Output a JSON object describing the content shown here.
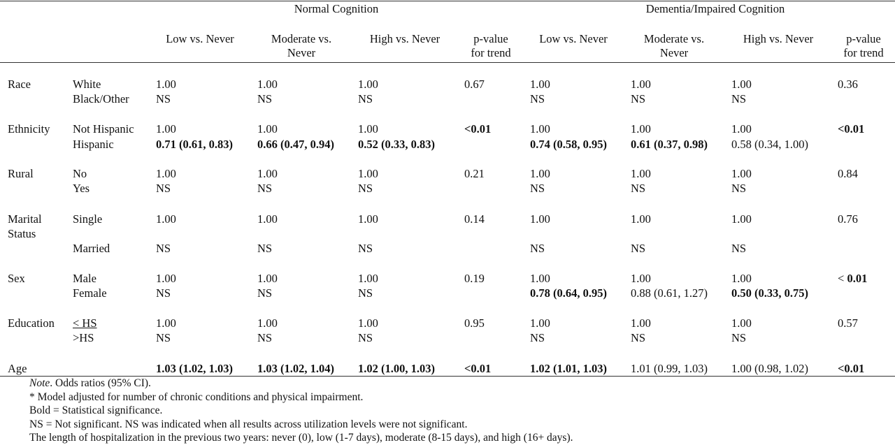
{
  "groups": {
    "normal": "Normal Cognition",
    "dementia": "Dementia/Impaired Cognition"
  },
  "columns": {
    "n_low": "Low vs. Never",
    "n_mod_1": "Moderate vs.",
    "n_mod_2": "Never",
    "n_high": "High vs. Never",
    "n_p_1": "p-value",
    "n_p_2": "for trend",
    "d_low": "Low vs. Never",
    "d_mod_1": "Moderate vs.",
    "d_mod_2": "Never",
    "d_high": "High vs. Never",
    "d_p_1": "p-value",
    "d_p_2": "for trend"
  },
  "rows": {
    "race": {
      "label": "Race",
      "l1": "White",
      "l2": "Black/Other",
      "n_low_1": "1.00",
      "n_low_2": "NS",
      "n_mod_1": "1.00",
      "n_mod_2": "NS",
      "n_high_1": "1.00",
      "n_high_2": "NS",
      "n_p": "0.67",
      "d_low_1": "1.00",
      "d_low_2": "NS",
      "d_mod_1": "1.00",
      "d_mod_2": "NS",
      "d_high_1": "1.00",
      "d_high_2": "NS",
      "d_p": "0.36"
    },
    "ethnicity": {
      "label": "Ethnicity",
      "l1": "Not Hispanic",
      "l2": "Hispanic",
      "n_low_1": "1.00",
      "n_low_2": "0.71 (0.61, 0.83)",
      "n_mod_1": "1.00",
      "n_mod_2": "0.66 (0.47, 0.94)",
      "n_high_1": "1.00",
      "n_high_2": "0.52 (0.33, 0.83)",
      "n_p": "<0.01",
      "d_low_1": "1.00",
      "d_low_2": "0.74 (0.58, 0.95)",
      "d_mod_1": "1.00",
      "d_mod_2": "0.61 (0.37, 0.98)",
      "d_high_1": "1.00",
      "d_high_2": "0.58 (0.34, 1.00)",
      "d_p": "<0.01"
    },
    "rural": {
      "label": "Rural",
      "l1": "No",
      "l2": "Yes",
      "n_low_1": "1.00",
      "n_low_2": "NS",
      "n_mod_1": "1.00",
      "n_mod_2": "NS",
      "n_high_1": "1.00",
      "n_high_2": "NS",
      "n_p": "0.21",
      "d_low_1": "1.00",
      "d_low_2": "NS",
      "d_mod_1": "1.00",
      "d_mod_2": "NS",
      "d_high_1": "1.00",
      "d_high_2": "NS",
      "d_p": "0.84"
    },
    "marital": {
      "label_1": "Marital",
      "label_2": "Status",
      "l1": "Single",
      "l2": "Married",
      "n_low_1": "1.00",
      "n_low_2": "NS",
      "n_mod_1": "1.00",
      "n_mod_2": "NS",
      "n_high_1": "1.00",
      "n_high_2": "NS",
      "n_p": "0.14",
      "d_low_1": "1.00",
      "d_low_2": "NS",
      "d_mod_1": "1.00",
      "d_mod_2": "NS",
      "d_high_1": "1.00",
      "d_high_2": "NS",
      "d_p": "0.76"
    },
    "sex": {
      "label": "Sex",
      "l1": "Male",
      "l2": "Female",
      "n_low_1": "1.00",
      "n_low_2": "NS",
      "n_mod_1": "1.00",
      "n_mod_2": "NS",
      "n_high_1": "1.00",
      "n_high_2": "NS",
      "n_p": "0.19",
      "d_low_1": "1.00",
      "d_low_2": "0.78 (0.64, 0.95)",
      "d_mod_1": "1.00",
      "d_mod_2": "0.88 (0.61, 1.27)",
      "d_high_1": "1.00",
      "d_high_2": "0.50 (0.33, 0.75)",
      "d_p_prefix": "< ",
      "d_p": "0.01"
    },
    "education": {
      "label": "Education",
      "l1": "< HS",
      "l2": ">HS",
      "n_low_1": "1.00",
      "n_low_2": "NS",
      "n_mod_1": "1.00",
      "n_mod_2": "NS",
      "n_high_1": "1.00",
      "n_high_2": "NS",
      "n_p": "0.95",
      "d_low_1": "1.00",
      "d_low_2": "NS",
      "d_mod_1": "1.00",
      "d_mod_2": "NS",
      "d_high_1": "1.00",
      "d_high_2": "NS",
      "d_p": "0.57"
    },
    "age": {
      "label": "Age",
      "n_low": "1.03 (1.02, 1.03)",
      "n_mod": "1.03 (1.02, 1.04)",
      "n_high": "1.02 (1.00, 1.03)",
      "n_p": "<0.01",
      "d_low": "1.02 (1.01, 1.03)",
      "d_mod": "1.01 (0.99, 1.03)",
      "d_high": "1.00 (0.98, 1.02)",
      "d_p": "<0.01"
    }
  },
  "notes": {
    "note_label": "Note",
    "note_text": ". Odds ratios (95% CI).",
    "adjusted": "* Model adjusted for number of chronic conditions and physical impairment.",
    "bold": "Bold = Statistical significance.",
    "ns": "NS = Not significant. NS was indicated when all results across utilization levels were not significant.",
    "length": "The length of hospitalization in the previous two years: never (0), low (1-7 days), moderate (8-15 days), and high (16+ days)."
  }
}
